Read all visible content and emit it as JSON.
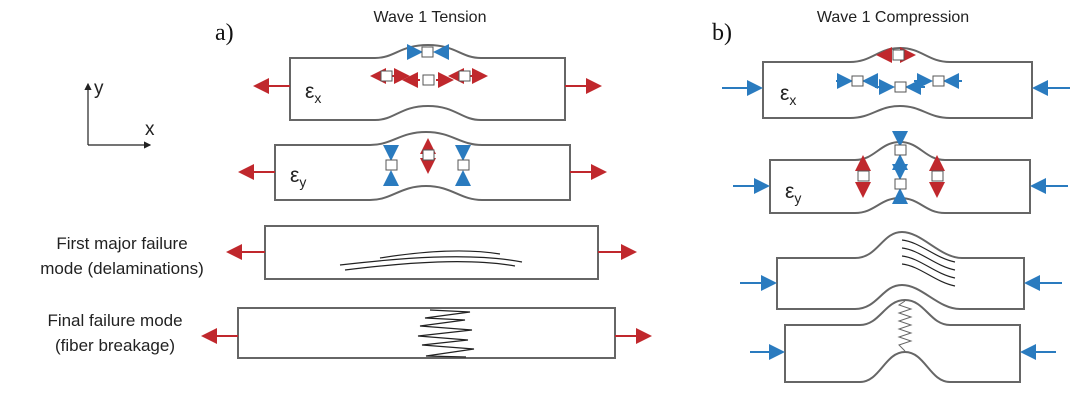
{
  "axes": {
    "y": "y",
    "x": "x"
  },
  "panels": [
    {
      "label": "a)",
      "title": "Wave 1 Tension",
      "rows": [
        {
          "symbol": "ε",
          "sub": "x"
        },
        {
          "symbol": "ε",
          "sub": "y"
        }
      ],
      "captions": [
        [
          "First major failure",
          "mode (delaminations)"
        ],
        [
          "Final failure mode",
          "(fiber breakage)"
        ]
      ]
    },
    {
      "label": "b)",
      "title": "Wave 1 Compression",
      "rows": [
        {
          "symbol": "ε",
          "sub": "x"
        },
        {
          "symbol": "ε",
          "sub": "y"
        }
      ]
    }
  ]
}
